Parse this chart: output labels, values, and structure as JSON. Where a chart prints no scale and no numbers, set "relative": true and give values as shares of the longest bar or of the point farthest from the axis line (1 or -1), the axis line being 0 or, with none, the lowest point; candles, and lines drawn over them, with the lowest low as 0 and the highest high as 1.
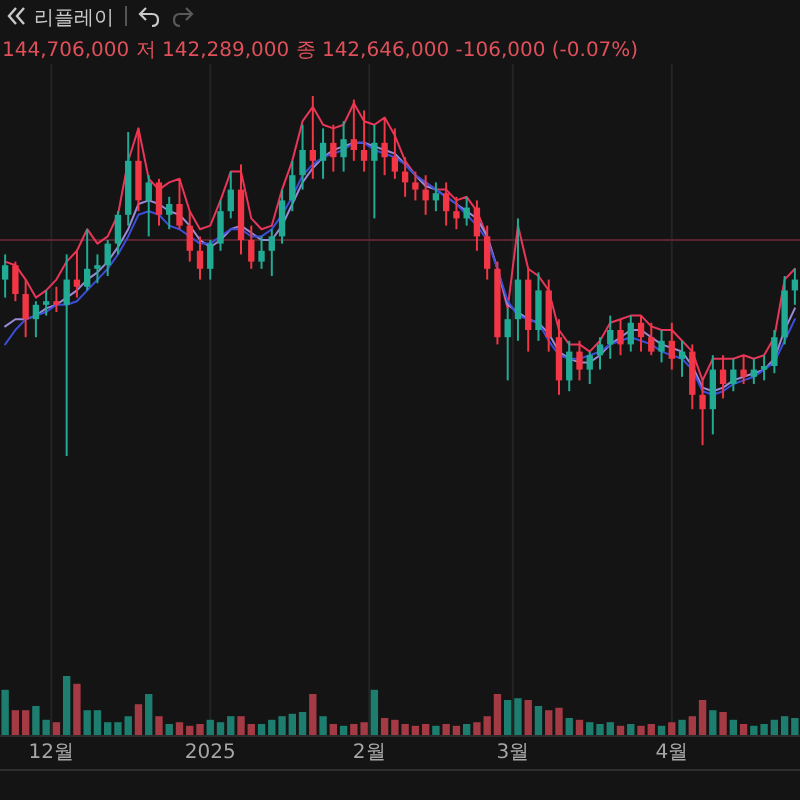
{
  "chart_data": [
    {
      "type": "candlestick",
      "relative": true,
      "tick_labels": false,
      "grid": "x",
      "annotations": [
        "리플레이",
        "144,706,000 저 142,289,000 종 142,646,000 -106,000 (-0.07%)"
      ],
      "xlim": [
        "2024-11-21",
        "2025-04-26"
      ],
      "xticks": [
        {
          "value": "2024-12-01",
          "label": null
        },
        {
          "value": "2025-01-01",
          "label": null
        },
        {
          "value": "2025-02-01",
          "label": null
        },
        {
          "value": "2025-03-01",
          "label": null
        },
        {
          "value": "2025-04-01",
          "label": null
        }
      ],
      "x": [
        "2024-11-22",
        "2024-11-24",
        "2024-11-26",
        "2024-11-28",
        "2024-11-30",
        "2024-12-02",
        "2024-12-04",
        "2024-12-06",
        "2024-12-08",
        "2024-12-10",
        "2024-12-12",
        "2024-12-14",
        "2024-12-16",
        "2024-12-18",
        "2024-12-20",
        "2024-12-22",
        "2024-12-24",
        "2024-12-26",
        "2024-12-28",
        "2024-12-30",
        "2025-01-01",
        "2025-01-03",
        "2025-01-05",
        "2025-01-07",
        "2025-01-09",
        "2025-01-11",
        "2025-01-13",
        "2025-01-15",
        "2025-01-17",
        "2025-01-19",
        "2025-01-21",
        "2025-01-23",
        "2025-01-25",
        "2025-01-27",
        "2025-01-29",
        "2025-01-31",
        "2025-02-02",
        "2025-02-04",
        "2025-02-06",
        "2025-02-08",
        "2025-02-10",
        "2025-02-12",
        "2025-02-14",
        "2025-02-16",
        "2025-02-18",
        "2025-02-20",
        "2025-02-22",
        "2025-02-24",
        "2025-02-26",
        "2025-02-28",
        "2025-03-02",
        "2025-03-04",
        "2025-03-06",
        "2025-03-08",
        "2025-03-10",
        "2025-03-12",
        "2025-03-14",
        "2025-03-16",
        "2025-03-18",
        "2025-03-20",
        "2025-03-22",
        "2025-03-24",
        "2025-03-26",
        "2025-03-28",
        "2025-03-30",
        "2025-04-01",
        "2025-04-03",
        "2025-04-05",
        "2025-04-07",
        "2025-04-09",
        "2025-04-11",
        "2025-04-13",
        "2025-04-15",
        "2025-04-17",
        "2025-04-19",
        "2025-04-21",
        "2025-04-23",
        "2025-04-25"
      ],
      "ohlc": [
        [
          0.49,
          0.56,
          0.44,
          0.53
        ],
        [
          0.53,
          0.54,
          0.43,
          0.45
        ],
        [
          0.45,
          0.49,
          0.33,
          0.38
        ],
        [
          0.38,
          0.43,
          0.33,
          0.42
        ],
        [
          0.42,
          0.46,
          0.39,
          0.43
        ],
        [
          0.43,
          0.47,
          0.4,
          0.42
        ],
        [
          0.42,
          0.56,
          0,
          0.49
        ],
        [
          0.49,
          0.57,
          0.44,
          0.47
        ],
        [
          0.47,
          0.63,
          0.46,
          0.52
        ],
        [
          0.52,
          0.56,
          0.48,
          0.53
        ],
        [
          0.53,
          0.6,
          0.5,
          0.59
        ],
        [
          0.59,
          0.68,
          0.56,
          0.67
        ],
        [
          0.67,
          0.9,
          0.64,
          0.82
        ],
        [
          0.82,
          0.91,
          0.68,
          0.71
        ],
        [
          0.71,
          0.78,
          0.61,
          0.76
        ],
        [
          0.76,
          0.77,
          0.64,
          0.67
        ],
        [
          0.67,
          0.72,
          0.63,
          0.7
        ],
        [
          0.7,
          0.77,
          0.63,
          0.64
        ],
        [
          0.64,
          0.68,
          0.54,
          0.57
        ],
        [
          0.57,
          0.61,
          0.49,
          0.52
        ],
        [
          0.52,
          0.6,
          0.49,
          0.59
        ],
        [
          0.59,
          0.71,
          0.57,
          0.68
        ],
        [
          0.68,
          0.79,
          0.66,
          0.74
        ],
        [
          0.74,
          0.81,
          0.56,
          0.6
        ],
        [
          0.6,
          0.64,
          0.52,
          0.54
        ],
        [
          0.54,
          0.61,
          0.52,
          0.57
        ],
        [
          0.57,
          0.63,
          0.5,
          0.61
        ],
        [
          0.61,
          0.74,
          0.59,
          0.71
        ],
        [
          0.71,
          0.82,
          0.68,
          0.78
        ],
        [
          0.78,
          0.92,
          0.74,
          0.85
        ],
        [
          0.85,
          1,
          0.77,
          0.82
        ],
        [
          0.82,
          0.91,
          0.77,
          0.87
        ],
        [
          0.87,
          0.92,
          0.79,
          0.83
        ],
        [
          0.83,
          0.93,
          0.79,
          0.88
        ],
        [
          0.88,
          0.99,
          0.82,
          0.85
        ],
        [
          0.85,
          0.96,
          0.79,
          0.82
        ],
        [
          0.82,
          0.92,
          0.66,
          0.87
        ],
        [
          0.87,
          0.94,
          0.78,
          0.83
        ],
        [
          0.83,
          0.91,
          0.77,
          0.79
        ],
        [
          0.79,
          0.83,
          0.72,
          0.76
        ],
        [
          0.76,
          0.79,
          0.71,
          0.74
        ],
        [
          0.74,
          0.78,
          0.67,
          0.71
        ],
        [
          0.71,
          0.76,
          0.68,
          0.73
        ],
        [
          0.73,
          0.76,
          0.64,
          0.68
        ],
        [
          0.68,
          0.72,
          0.63,
          0.66
        ],
        [
          0.66,
          0.72,
          0.64,
          0.69
        ],
        [
          0.69,
          0.71,
          0.57,
          0.61
        ],
        [
          0.61,
          0.64,
          0.49,
          0.52
        ],
        [
          0.52,
          0.54,
          0.31,
          0.33
        ],
        [
          0.33,
          0.41,
          0.21,
          0.38
        ],
        [
          0.38,
          0.66,
          0.32,
          0.49
        ],
        [
          0.49,
          0.52,
          0.29,
          0.35
        ],
        [
          0.35,
          0.51,
          0.32,
          0.46
        ],
        [
          0.46,
          0.49,
          0.29,
          0.33
        ],
        [
          0.33,
          0.38,
          0.17,
          0.21
        ],
        [
          0.21,
          0.32,
          0.18,
          0.29
        ],
        [
          0.29,
          0.32,
          0.21,
          0.24
        ],
        [
          0.24,
          0.29,
          0.2,
          0.28
        ],
        [
          0.28,
          0.33,
          0.24,
          0.31
        ],
        [
          0.31,
          0.39,
          0.27,
          0.35
        ],
        [
          0.35,
          0.38,
          0.28,
          0.31
        ],
        [
          0.31,
          0.39,
          0.29,
          0.37
        ],
        [
          0.37,
          0.39,
          0.29,
          0.33
        ],
        [
          0.33,
          0.37,
          0.28,
          0.29
        ],
        [
          0.29,
          0.35,
          0.26,
          0.32
        ],
        [
          0.32,
          0.37,
          0.24,
          0.27
        ],
        [
          0.27,
          0.32,
          0.22,
          0.29
        ],
        [
          0.29,
          0.31,
          0.13,
          0.17
        ],
        [
          0.17,
          0.21,
          0.03,
          0.13
        ],
        [
          0.13,
          0.28,
          0.06,
          0.24
        ],
        [
          0.24,
          0.28,
          0.16,
          0.2
        ],
        [
          0.2,
          0.27,
          0.18,
          0.24
        ],
        [
          0.24,
          0.28,
          0.2,
          0.22
        ],
        [
          0.22,
          0.27,
          0.2,
          0.24
        ],
        [
          0.24,
          0.28,
          0.21,
          0.25
        ],
        [
          0.25,
          0.35,
          0.23,
          0.33
        ],
        [
          0.33,
          0.5,
          0.31,
          0.46
        ],
        [
          0.46,
          0.52,
          0.42,
          0.49
        ]
      ],
      "colors": [
        "#22ab94",
        "#f23645",
        "#f23645",
        "#22ab94",
        "#22ab94",
        "#f23645",
        "#22ab94",
        "#f23645",
        "#22ab94",
        "#22ab94",
        "#22ab94",
        "#22ab94",
        "#22ab94",
        "#f23645",
        "#22ab94",
        "#f23645",
        "#22ab94",
        "#f23645",
        "#f23645",
        "#f23645",
        "#22ab94",
        "#22ab94",
        "#22ab94",
        "#f23645",
        "#f23645",
        "#22ab94",
        "#22ab94",
        "#22ab94",
        "#22ab94",
        "#22ab94",
        "#f23645",
        "#22ab94",
        "#f23645",
        "#22ab94",
        "#f23645",
        "#f23645",
        "#22ab94",
        "#f23645",
        "#f23645",
        "#f23645",
        "#f23645",
        "#f23645",
        "#22ab94",
        "#f23645",
        "#f23645",
        "#22ab94",
        "#f23645",
        "#f23645",
        "#f23645",
        "#22ab94",
        "#22ab94",
        "#f23645",
        "#22ab94",
        "#f23645",
        "#f23645",
        "#22ab94",
        "#f23645",
        "#22ab94",
        "#22ab94",
        "#22ab94",
        "#f23645",
        "#22ab94",
        "#f23645",
        "#f23645",
        "#22ab94",
        "#f23645",
        "#22ab94",
        "#f23645",
        "#f23645",
        "#22ab94",
        "#f23645",
        "#22ab94",
        "#f23645",
        "#22ab94",
        "#22ab94",
        "#22ab94",
        "#22ab94",
        "#22ab94"
      ],
      "ref_lines": [
        {
          "axis": "y",
          "value": 0.6,
          "color": "#5a2530"
        }
      ],
      "series": [
        {
          "type": "line",
          "color": "#e8365a",
          "values": [
            0.54,
            0.53,
            0.49,
            0.44,
            0.46,
            0.49,
            0.54,
            0.57,
            0.63,
            0.59,
            0.61,
            0.67,
            0.82,
            0.91,
            0.77,
            0.74,
            0.76,
            0.77,
            0.68,
            0.63,
            0.64,
            0.71,
            0.79,
            0.79,
            0.66,
            0.63,
            0.64,
            0.74,
            0.82,
            0.93,
            0.97,
            0.92,
            0.91,
            0.92,
            0.98,
            0.93,
            0.92,
            0.94,
            0.89,
            0.82,
            0.78,
            0.76,
            0.74,
            0.74,
            0.71,
            0.72,
            0.68,
            0.61,
            0.52,
            0.41,
            0.64,
            0.52,
            0.5,
            0.46,
            0.35,
            0.31,
            0.31,
            0.29,
            0.32,
            0.37,
            0.38,
            0.39,
            0.39,
            0.36,
            0.35,
            0.35,
            0.32,
            0.29,
            0.21,
            0.27,
            0.27,
            0.27,
            0.28,
            0.27,
            0.28,
            0.33,
            0.49,
            0.52
          ]
        },
        {
          "type": "line",
          "color": "#9a8ad8",
          "values": [
            0.36,
            0.38,
            0.38,
            0.39,
            0.41,
            0.42,
            0.44,
            0.46,
            0.49,
            0.51,
            0.54,
            0.58,
            0.63,
            0.7,
            0.71,
            0.7,
            0.68,
            0.67,
            0.64,
            0.6,
            0.58,
            0.6,
            0.63,
            0.64,
            0.62,
            0.6,
            0.6,
            0.64,
            0.7,
            0.76,
            0.8,
            0.83,
            0.85,
            0.86,
            0.87,
            0.87,
            0.86,
            0.85,
            0.84,
            0.81,
            0.78,
            0.75,
            0.74,
            0.72,
            0.7,
            0.68,
            0.66,
            0.61,
            0.52,
            0.42,
            0.4,
            0.38,
            0.37,
            0.34,
            0.29,
            0.27,
            0.26,
            0.26,
            0.28,
            0.31,
            0.33,
            0.35,
            0.35,
            0.33,
            0.31,
            0.3,
            0.29,
            0.25,
            0.19,
            0.18,
            0.19,
            0.21,
            0.22,
            0.23,
            0.24,
            0.27,
            0.35,
            0.41
          ]
        },
        {
          "type": "line",
          "color": "#3a4ed8",
          "values": [
            0.31,
            0.35,
            0.38,
            0.39,
            0.4,
            0.42,
            0.42,
            0.43,
            0.46,
            0.49,
            0.52,
            0.56,
            0.61,
            0.67,
            0.68,
            0.67,
            0.64,
            0.63,
            0.61,
            0.59,
            0.59,
            0.61,
            0.63,
            0.63,
            0.61,
            0.61,
            0.63,
            0.67,
            0.72,
            0.78,
            0.81,
            0.83,
            0.84,
            0.85,
            0.87,
            0.87,
            0.85,
            0.84,
            0.83,
            0.81,
            0.78,
            0.76,
            0.74,
            0.72,
            0.7,
            0.67,
            0.64,
            0.6,
            0.52,
            0.43,
            0.39,
            0.38,
            0.37,
            0.32,
            0.28,
            0.27,
            0.27,
            0.28,
            0.29,
            0.31,
            0.32,
            0.33,
            0.32,
            0.31,
            0.29,
            0.28,
            0.27,
            0.24,
            0.18,
            0.17,
            0.18,
            0.2,
            0.21,
            0.22,
            0.24,
            0.26,
            0.32,
            0.38
          ]
        }
      ]
    },
    {
      "type": "bar",
      "relative": true,
      "grid": "x",
      "xlim": [
        "2024-11-21",
        "2025-04-26"
      ],
      "xticks": [
        {
          "value": "2024-12-01",
          "label": "12월"
        },
        {
          "value": "2025-01-01",
          "label": "2025"
        },
        {
          "value": "2025-02-01",
          "label": "2월"
        },
        {
          "value": "2025-03-01",
          "label": "3월"
        },
        {
          "value": "2025-04-01",
          "label": "4월"
        }
      ],
      "x": [
        "2024-11-22",
        "2024-11-24",
        "2024-11-26",
        "2024-11-28",
        "2024-11-30",
        "2024-12-02",
        "2024-12-04",
        "2024-12-06",
        "2024-12-08",
        "2024-12-10",
        "2024-12-12",
        "2024-12-14",
        "2024-12-16",
        "2024-12-18",
        "2024-12-20",
        "2024-12-22",
        "2024-12-24",
        "2024-12-26",
        "2024-12-28",
        "2024-12-30",
        "2025-01-01",
        "2025-01-03",
        "2025-01-05",
        "2025-01-07",
        "2025-01-09",
        "2025-01-11",
        "2025-01-13",
        "2025-01-15",
        "2025-01-17",
        "2025-01-19",
        "2025-01-21",
        "2025-01-23",
        "2025-01-25",
        "2025-01-27",
        "2025-01-29",
        "2025-01-31",
        "2025-02-02",
        "2025-02-04",
        "2025-02-06",
        "2025-02-08",
        "2025-02-10",
        "2025-02-12",
        "2025-02-14",
        "2025-02-16",
        "2025-02-18",
        "2025-02-20",
        "2025-02-22",
        "2025-02-24",
        "2025-02-26",
        "2025-02-28",
        "2025-03-02",
        "2025-03-04",
        "2025-03-06",
        "2025-03-08",
        "2025-03-10",
        "2025-03-12",
        "2025-03-14",
        "2025-03-16",
        "2025-03-18",
        "2025-03-20",
        "2025-03-22",
        "2025-03-24",
        "2025-03-26",
        "2025-03-28",
        "2025-03-30",
        "2025-04-01",
        "2025-04-03",
        "2025-04-05",
        "2025-04-07",
        "2025-04-09",
        "2025-04-11",
        "2025-04-13",
        "2025-04-15",
        "2025-04-17",
        "2025-04-19",
        "2025-04-21",
        "2025-04-23",
        "2025-04-25"
      ],
      "values": [
        0.77,
        0.43,
        0.43,
        0.5,
        0.27,
        0.23,
        1,
        0.87,
        0.43,
        0.43,
        0.23,
        0.23,
        0.33,
        0.53,
        0.7,
        0.33,
        0.2,
        0.23,
        0.17,
        0.2,
        0.27,
        0.23,
        0.33,
        0.33,
        0.2,
        0.2,
        0.27,
        0.33,
        0.37,
        0.4,
        0.7,
        0.33,
        0.2,
        0.17,
        0.2,
        0.23,
        0.77,
        0.3,
        0.27,
        0.2,
        0.17,
        0.2,
        0.17,
        0.2,
        0.17,
        0.2,
        0.23,
        0.33,
        0.7,
        0.6,
        0.63,
        0.6,
        0.5,
        0.43,
        0.47,
        0.3,
        0.27,
        0.23,
        0.2,
        0.23,
        0.17,
        0.2,
        0.17,
        0.2,
        0.17,
        0.23,
        0.27,
        0.33,
        0.6,
        0.43,
        0.4,
        0.27,
        0.2,
        0.17,
        0.2,
        0.27,
        0.33,
        0.3
      ],
      "colors": [
        "#1d7d6e",
        "#a33a44",
        "#a33a44",
        "#1d7d6e",
        "#1d7d6e",
        "#a33a44",
        "#1d7d6e",
        "#a33a44",
        "#1d7d6e",
        "#1d7d6e",
        "#1d7d6e",
        "#1d7d6e",
        "#1d7d6e",
        "#a33a44",
        "#1d7d6e",
        "#a33a44",
        "#1d7d6e",
        "#a33a44",
        "#a33a44",
        "#a33a44",
        "#1d7d6e",
        "#1d7d6e",
        "#1d7d6e",
        "#a33a44",
        "#a33a44",
        "#1d7d6e",
        "#1d7d6e",
        "#1d7d6e",
        "#1d7d6e",
        "#1d7d6e",
        "#a33a44",
        "#1d7d6e",
        "#a33a44",
        "#1d7d6e",
        "#a33a44",
        "#a33a44",
        "#1d7d6e",
        "#a33a44",
        "#a33a44",
        "#a33a44",
        "#a33a44",
        "#a33a44",
        "#1d7d6e",
        "#a33a44",
        "#a33a44",
        "#1d7d6e",
        "#a33a44",
        "#a33a44",
        "#a33a44",
        "#1d7d6e",
        "#1d7d6e",
        "#a33a44",
        "#1d7d6e",
        "#a33a44",
        "#a33a44",
        "#1d7d6e",
        "#a33a44",
        "#1d7d6e",
        "#1d7d6e",
        "#1d7d6e",
        "#a33a44",
        "#1d7d6e",
        "#a33a44",
        "#a33a44",
        "#1d7d6e",
        "#a33a44",
        "#1d7d6e",
        "#a33a44",
        "#a33a44",
        "#1d7d6e",
        "#a33a44",
        "#1d7d6e",
        "#a33a44",
        "#1d7d6e",
        "#1d7d6e",
        "#1d7d6e",
        "#1d7d6e",
        "#1d7d6e"
      ]
    }
  ]
}
